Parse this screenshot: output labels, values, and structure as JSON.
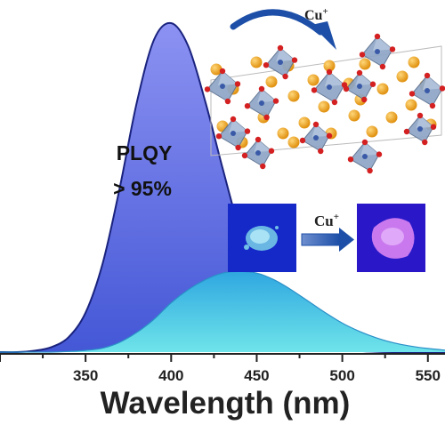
{
  "chart_data": {
    "type": "area",
    "x": [
      310,
      320,
      330,
      340,
      350,
      360,
      370,
      380,
      390,
      400,
      410,
      420,
      430,
      440,
      450,
      460,
      470,
      480,
      490,
      500,
      510,
      520,
      530,
      540,
      550,
      560
    ],
    "series": [
      {
        "values": [
          0.0,
          0.004,
          0.015,
          0.045,
          0.12,
          0.27,
          0.5,
          0.76,
          0.95,
          1.0,
          0.93,
          0.76,
          0.56,
          0.37,
          0.22,
          0.12,
          0.06,
          0.03,
          0.014,
          0.006,
          0.003,
          0.001,
          0.0,
          0.0,
          0.0,
          0.0
        ],
        "color": "#7b86e8"
      },
      {
        "values": [
          0.0,
          0.0,
          0.0,
          0.002,
          0.005,
          0.012,
          0.03,
          0.06,
          0.1,
          0.15,
          0.19,
          0.22,
          0.24,
          0.245,
          0.24,
          0.22,
          0.19,
          0.155,
          0.12,
          0.088,
          0.063,
          0.043,
          0.028,
          0.018,
          0.011,
          0.006
        ],
        "color": "#4fb8e8"
      }
    ],
    "xlabel": "Wavelength (nm)",
    "ticks": [
      "350",
      "400",
      "450",
      "500",
      "550"
    ],
    "xlim": [
      300,
      560
    ],
    "ylim": [
      0,
      1
    ],
    "grid": false,
    "annotation_lines": [
      "PLQY",
      "> 95%"
    ]
  },
  "inset": {
    "top_arrow_label": "Cu",
    "bottom_arrow_label": "Cu",
    "superscript": "+"
  },
  "colors": {
    "fill_top": "#8890f0",
    "fill_bottom": "#4a60d8",
    "cyan_top": "#3fb6e6",
    "cyan_bottom": "#6ee0e8",
    "outline": "#1a237e",
    "octahedron": "#8aa4c2",
    "cation": "#f0a82a",
    "anion": "#d42020"
  }
}
